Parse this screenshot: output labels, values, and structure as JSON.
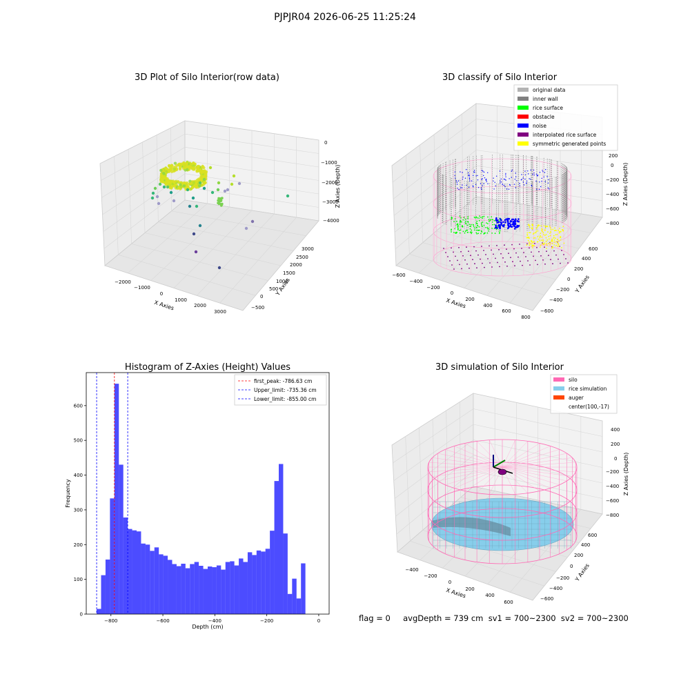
{
  "figure_title": "PJPJR04 2026-06-25 11:25:24",
  "status_line": "flag = 0     avgDepth = 739 cm  sv1 = 700~2300  sv2 = 700~2300",
  "chart_data": [
    {
      "type": "scatter",
      "title": "3D Plot of Silo Interior(row data)",
      "xlabel": "X Axies",
      "ylabel": "Y Axies",
      "zlabel": "Z Axies (Depth)",
      "x_ticks": [
        "−2000",
        "−1000",
        "0",
        "1000",
        "2000",
        "3000"
      ],
      "y_ticks": [
        "−500",
        "0",
        "500",
        "1000",
        "1500",
        "2000",
        "2500",
        "3000"
      ],
      "z_ticks": [
        "−4000",
        "−3000",
        "−2000",
        "−1000",
        "0"
      ],
      "xlim": [
        -2500,
        3500
      ],
      "ylim": [
        -600,
        3200
      ],
      "zlim": [
        -4400,
        200
      ],
      "colormap": "viridis by depth",
      "grid": true
    },
    {
      "type": "scatter",
      "title": "3D classify of Silo Interior",
      "xlabel": "X Axies",
      "ylabel": "Y Axies",
      "zlabel": "Z Axies (Depth)",
      "x_ticks": [
        "−600",
        "−400",
        "−200",
        "0",
        "200",
        "400",
        "600",
        "800"
      ],
      "y_ticks": [
        "−600",
        "−400",
        "−200",
        "0",
        "200",
        "400",
        "600"
      ],
      "z_ticks": [
        "−800",
        "−600",
        "−400",
        "−200",
        "0",
        "200"
      ],
      "legend_position": "top-right",
      "legend": [
        {
          "name": "original data",
          "color": "#b3b3b3"
        },
        {
          "name": "inner wall",
          "color": "#808080"
        },
        {
          "name": "rice surface",
          "color": "#00ff00"
        },
        {
          "name": "obstacle",
          "color": "#ff0000"
        },
        {
          "name": "noise",
          "color": "#0000ff"
        },
        {
          "name": "interpolated rice surface",
          "color": "#800080"
        },
        {
          "name": "symmetric generated points",
          "color": "#ffff00"
        }
      ],
      "grid": true
    },
    {
      "type": "bar",
      "title": "Histogram of Z-Axies (Height) Values",
      "xlabel": "Depth (cm)",
      "ylabel": "Frequency",
      "xlim": [
        -895,
        40
      ],
      "ylim": [
        0,
        695
      ],
      "x_ticks": [
        -800,
        -600,
        -400,
        -200,
        0
      ],
      "x_tick_labels": [
        "−800",
        "−600",
        "−400",
        "−200",
        "0"
      ],
      "y_ticks": [
        0,
        100,
        200,
        300,
        400,
        500,
        600
      ],
      "y_tick_labels": [
        "0",
        "100",
        "200",
        "300",
        "400",
        "500",
        "600"
      ],
      "bin_start": -855,
      "bin_width": 17.1,
      "values": [
        15,
        112,
        157,
        333,
        663,
        430,
        278,
        245,
        241,
        238,
        203,
        200,
        182,
        192,
        172,
        168,
        156,
        144,
        138,
        145,
        132,
        144,
        150,
        139,
        130,
        137,
        135,
        140,
        128,
        150,
        152,
        140,
        160,
        150,
        178,
        170,
        183,
        180,
        188,
        240,
        383,
        432,
        232,
        58,
        102,
        45,
        146
      ],
      "bar_color": "#0000ff",
      "bar_opacity": 0.7,
      "vlines": [
        {
          "name": "first_peak: -786.63 cm",
          "x": -786.63,
          "color": "#ff0000"
        },
        {
          "name": "Upper_limit: -735.36 cm",
          "x": -735.36,
          "color": "#0000ff"
        },
        {
          "name": "Lower_limit: -855.00 cm",
          "x": -855.0,
          "color": "#0000ff"
        }
      ],
      "legend_position": "top-right"
    },
    {
      "type": "scatter",
      "title": "3D simulation of Silo Interior",
      "xlabel": "X Axies",
      "ylabel": "Y Axies",
      "zlabel": "Z Axies (Depth)",
      "x_ticks": [
        "−400",
        "−200",
        "0",
        "200",
        "400",
        "600"
      ],
      "y_ticks": [
        "−600",
        "−400",
        "−200",
        "0",
        "200",
        "400",
        "600"
      ],
      "z_ticks": [
        "−800",
        "−600",
        "−400",
        "−200",
        "0",
        "200",
        "400"
      ],
      "legend_position": "top-right",
      "legend": [
        {
          "name": "silo",
          "color": "#ff69b4"
        },
        {
          "name": "rice simulation",
          "color": "#87ceeb"
        },
        {
          "name": "auger",
          "color": "#ff4500"
        },
        {
          "name": "center(100,-17)",
          "color": ""
        }
      ],
      "grid": true
    }
  ]
}
